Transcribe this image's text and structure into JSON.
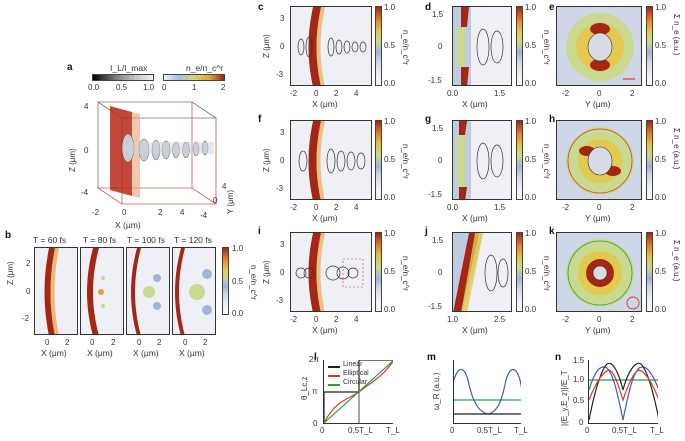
{
  "panels": {
    "a": {
      "letter": "a",
      "cbar1_label": "I_L/I_max",
      "cbar1_ticks": [
        "0.0",
        "0.5",
        "1.0"
      ],
      "cbar2_label": "n_e/n_c^r",
      "cbar2_ticks": [
        "0",
        "1",
        "2"
      ],
      "zlabel": "Z (μm)",
      "xlabel": "X (μm)",
      "ylabel": "Y (μm)",
      "zticks": [
        "4",
        "0",
        "-4"
      ],
      "xticks": [
        "-2",
        "0",
        "2",
        "4"
      ],
      "yticks": [
        "-4",
        "0",
        "4"
      ]
    },
    "b": {
      "letter": "b",
      "times": [
        "T = 60 fs",
        "T = 80 fs",
        "T = 100 fs",
        "T = 120 fs"
      ],
      "ylabel": "Z (μm)",
      "xlabel": "X (μm)",
      "yticks": [
        "2",
        "0",
        "-2"
      ],
      "xticks": [
        "0",
        "2"
      ],
      "cbar_ticks": [
        "1.0",
        "0.5",
        "0.0"
      ],
      "cbar_label": "n_e/n_c^r"
    },
    "c": {
      "letter": "c",
      "ylabel": "Z (μm)",
      "xlabel": "X (μm)",
      "yticks": [
        "3",
        "0",
        "-3"
      ],
      "xticks": [
        "-2",
        "0",
        "2",
        "4"
      ],
      "cbar_ticks": [
        "1.0",
        "0.5",
        "0.0"
      ],
      "cbar_label": "n_e/n_c^r"
    },
    "d": {
      "letter": "d",
      "xlabel": "X (μm)",
      "yticks": [
        "1.5",
        "0",
        "-1.5"
      ],
      "xticks": [
        "0.0",
        "1.5"
      ],
      "cbar_ticks": [
        "1.0",
        "0.5",
        "0.0"
      ],
      "cbar_label": "n_e/n_c^r"
    },
    "e": {
      "letter": "e",
      "xlabel": "Y (μm)",
      "xticks": [
        "-2",
        "0",
        "2"
      ],
      "cbar_ticks": [
        "1.0",
        "0.5",
        "0.0"
      ],
      "cbar_label": "Σ n_e (a.u.)"
    },
    "f": {
      "letter": "f",
      "ylabel": "Z (μm)",
      "xlabel": "X (μm)",
      "yticks": [
        "3",
        "0",
        "-3"
      ],
      "xticks": [
        "-2",
        "0",
        "2",
        "4"
      ],
      "cbar_ticks": [
        "1.0",
        "0.5",
        "0.0"
      ],
      "cbar_label": "n_e/n_c^r"
    },
    "g": {
      "letter": "g",
      "xlabel": "X (μm)",
      "yticks": [
        "1.5",
        "0",
        "-1.5"
      ],
      "xticks": [
        "0.0",
        "1.5"
      ],
      "cbar_ticks": [
        "1.0",
        "0.5",
        "0.0"
      ],
      "cbar_label": "n_e/n_c^r"
    },
    "h": {
      "letter": "h",
      "xlabel": "Y (μm)",
      "xticks": [
        "-2",
        "0",
        "2"
      ],
      "cbar_ticks": [
        "1.0",
        "0.5",
        "0.0"
      ],
      "cbar_label": "Σ n_e (a.u.)"
    },
    "i": {
      "letter": "i",
      "ylabel": "Z (μm)",
      "xlabel": "X (μm)",
      "yticks": [
        "3",
        "0",
        "-3"
      ],
      "xticks": [
        "-2",
        "0",
        "2",
        "4"
      ],
      "cbar_ticks": [
        "1.0",
        "0.5",
        "0.0"
      ],
      "cbar_label": "n_e/n_c^r"
    },
    "j": {
      "letter": "j",
      "xlabel": "X (μm)",
      "yticks": [
        "1.5",
        "0",
        "-1.5"
      ],
      "xticks": [
        "1.0",
        "2.5"
      ],
      "cbar_ticks": [
        "1.0",
        "0.5",
        "0.0"
      ],
      "cbar_label": "n_e/n_c^r"
    },
    "k": {
      "letter": "k",
      "xlabel": "Y (μm)",
      "xticks": [
        "-2",
        "0",
        "2"
      ],
      "cbar_ticks": [
        "1.0",
        "0.5",
        "0.0"
      ],
      "cbar_label": "Σ n_e (a.u.)"
    },
    "l": {
      "letter": "l",
      "ylabel": "θ_Lc,z",
      "yticks": [
        "2π",
        "π",
        "0"
      ],
      "xticks": [
        "0",
        "0.5T_L",
        "T_L"
      ],
      "legend": [
        "Linear",
        "Elliptical",
        "Circular"
      ]
    },
    "m": {
      "letter": "m",
      "ylabel": "ω_R (a.u.)",
      "xticks": [
        "0",
        "0.5T_L",
        "T_L"
      ]
    },
    "n": {
      "letter": "n",
      "ylabel": "|(E_y,E_z)|/E_T",
      "yticks": [
        "1.5",
        "1.0",
        "0.5",
        "0"
      ],
      "xticks": [
        "0",
        "0.5T_L",
        "T_L"
      ]
    }
  },
  "colors": {
    "linear": "#222222",
    "elliptical": "#d63a2f",
    "circular": "#2e9a4a",
    "blue_curve": "#3b5bb5",
    "green_line": "#2e9a4a"
  }
}
